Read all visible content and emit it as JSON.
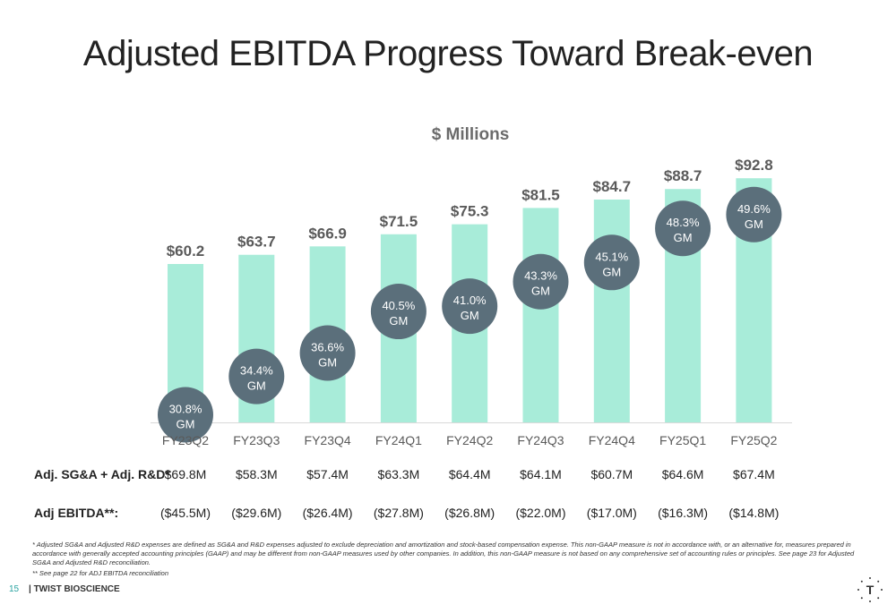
{
  "page": {
    "title": "Adjusted EBITDA Progress Toward Break-even",
    "page_number": "15",
    "brand": "| TWIST BIOSCIENCE",
    "logo_letter": "T",
    "footnote_1": "* Adjusted SG&A and Adjusted R&D expenses are defined as SG&A and R&D expenses adjusted to exclude depreciation and amortization and stock-based compensation expense. This non-GAAP measure is not in accordance with, or an alternative for, measures prepared in accordance with generally accepted accounting principles (GAAP) and may be different from non-GAAP measures used by other companies. In addition, this non-GAAP measure is not based on any comprehensive set of accounting rules or principles. See page 23 for Adjusted SG&A and Adjusted R&D reconciliation.",
    "footnote_2": "** See page 22 for ADJ EBITDA reconciliation"
  },
  "chart_data": {
    "type": "bar",
    "title": "$ Millions",
    "categories": [
      "FY23Q2",
      "FY23Q3",
      "FY23Q4",
      "FY24Q1",
      "FY24Q2",
      "FY24Q3",
      "FY24Q4",
      "FY25Q1",
      "FY25Q2"
    ],
    "values": [
      60.2,
      63.7,
      66.9,
      71.5,
      75.3,
      81.5,
      84.7,
      88.7,
      92.8
    ],
    "value_labels": [
      "$60.2",
      "$63.7",
      "$66.9",
      "$71.5",
      "$75.3",
      "$81.5",
      "$84.7",
      "$88.7",
      "$92.8"
    ],
    "gross_margin_pct": [
      30.8,
      34.4,
      36.6,
      40.5,
      41.0,
      43.3,
      45.1,
      48.3,
      49.6
    ],
    "gm_labels": [
      "30.8%",
      "34.4%",
      "36.6%",
      "40.5%",
      "41.0%",
      "43.3%",
      "45.1%",
      "48.3%",
      "49.6%"
    ],
    "gm_suffix": "GM",
    "ylim": [
      0,
      100
    ],
    "grid": false,
    "colors": {
      "bar": "#a8ecd9",
      "bubble": "#5b6f7b",
      "bubble_text": "#ffffff",
      "axis": "#d9d9d9"
    }
  },
  "table": {
    "rows": [
      {
        "label": "Adj. SG&A + Adj. R&D*",
        "values": [
          "$69.8M",
          "$58.3M",
          "$57.4M",
          "$63.3M",
          "$64.4M",
          "$64.1M",
          "$60.7M",
          "$64.6M",
          "$67.4M"
        ]
      },
      {
        "label": "Adj EBITDA**:",
        "values": [
          "($45.5M)",
          "($29.6M)",
          "($26.4M)",
          "($27.8M)",
          "($26.8M)",
          "($22.0M)",
          "($17.0M)",
          "($16.3M)",
          "($14.8M)"
        ]
      }
    ]
  }
}
